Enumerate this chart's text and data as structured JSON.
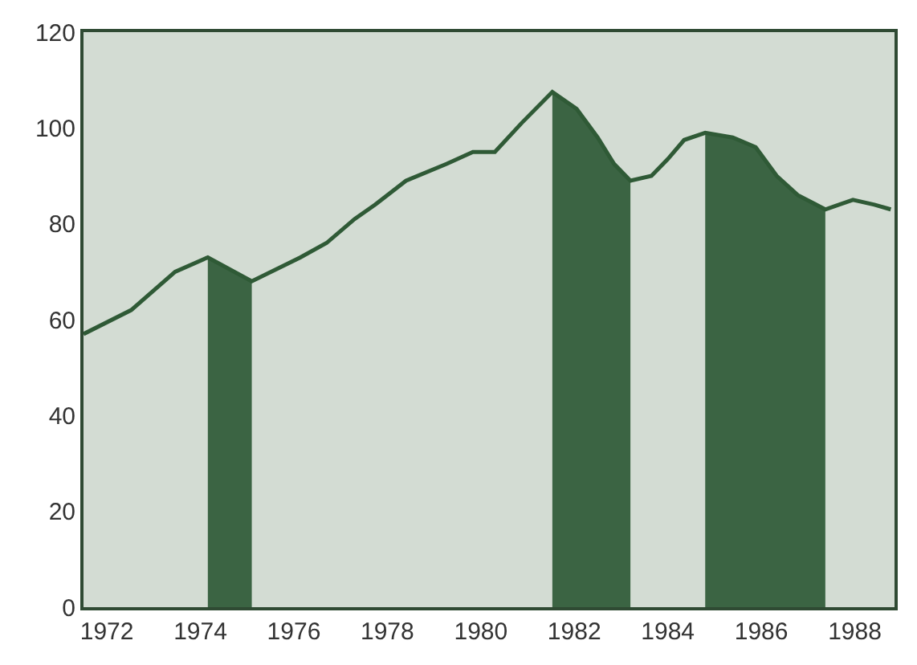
{
  "chart_data": {
    "type": "line",
    "xlim": [
      1971.5,
      1988.85
    ],
    "ylim": [
      0,
      120
    ],
    "xticks": [
      1972,
      1974,
      1976,
      1978,
      1980,
      1982,
      1984,
      1986,
      1988
    ],
    "yticks": [
      0,
      20,
      40,
      60,
      80,
      100,
      120
    ],
    "grid": false,
    "series": [
      {
        "type": "area",
        "color": "#3b6443",
        "x": [
          1974.16,
          1975.1
        ],
        "values": [
          73,
          68
        ]
      },
      {
        "type": "area",
        "color": "#3b6443",
        "x": [
          1981.53,
          1982.05,
          1982.5,
          1982.85,
          1983.2
        ],
        "values": [
          107.5,
          104,
          98,
          92.5,
          89
        ]
      },
      {
        "type": "area",
        "color": "#3b6443",
        "x": [
          1984.8,
          1985.39,
          1985.88,
          1986.33,
          1986.78,
          1987.37
        ],
        "values": [
          99,
          98,
          96,
          90,
          86,
          83
        ]
      },
      {
        "color": "#2f5a36",
        "x": [
          1971.5,
          1972.52,
          1973.46,
          1974.16,
          1975.1,
          1976.14,
          1976.7,
          1977.3,
          1977.74,
          1978.4,
          1979.27,
          1979.83,
          1980.3,
          1980.87,
          1981.53,
          1982.05,
          1982.5,
          1982.85,
          1983.2,
          1983.65,
          1984.0,
          1984.35,
          1984.8,
          1985.39,
          1985.88,
          1986.33,
          1986.78,
          1987.37,
          1987.96,
          1988.42,
          1988.77
        ],
        "values": [
          57,
          62,
          70,
          73,
          68,
          73,
          76,
          81,
          84,
          89,
          92.5,
          95,
          95,
          101,
          107.5,
          104,
          98,
          92.5,
          89,
          90,
          93.5,
          97.5,
          99,
          98,
          96,
          90,
          86,
          83,
          85,
          84,
          83
        ]
      }
    ]
  }
}
